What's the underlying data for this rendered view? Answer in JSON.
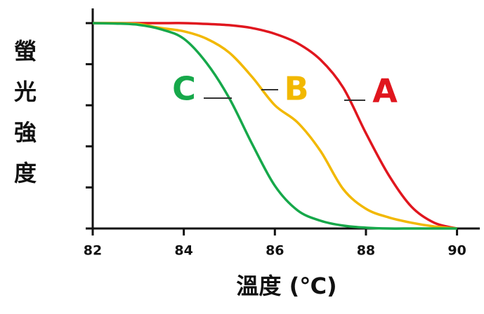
{
  "chart_data": {
    "type": "line",
    "x_label": "溫度 (℃)",
    "y_label": "螢光強度",
    "x": [
      82,
      82.5,
      83,
      83.5,
      84,
      84.5,
      85,
      85.5,
      86,
      86.5,
      87,
      87.5,
      88,
      88.5,
      89,
      89.5,
      90
    ],
    "series": [
      {
        "name": "A",
        "color": "#e0161e",
        "values": [
          5,
          5,
          5,
          5,
          5,
          4.98,
          4.95,
          4.88,
          4.74,
          4.51,
          4.11,
          3.43,
          2.32,
          1.3,
          0.53,
          0.14,
          0
        ]
      },
      {
        "name": "B",
        "color": "#f2b800",
        "values": [
          5,
          5,
          4.98,
          4.88,
          4.8,
          4.62,
          4.28,
          3.69,
          3.0,
          2.58,
          1.89,
          0.96,
          0.48,
          0.27,
          0.14,
          0.05,
          0
        ]
      },
      {
        "name": "C",
        "color": "#16a84a",
        "values": [
          5,
          4.99,
          4.96,
          4.85,
          4.62,
          4.03,
          3.17,
          2.06,
          1.04,
          0.44,
          0.19,
          0.07,
          0.02,
          0,
          0,
          0,
          0
        ]
      }
    ],
    "xlim": [
      82,
      90.5
    ],
    "xticks": [
      82,
      84,
      86,
      88,
      90
    ],
    "ylim": [
      0,
      5
    ],
    "yticks": [
      0,
      1,
      2,
      3,
      4,
      5
    ]
  }
}
